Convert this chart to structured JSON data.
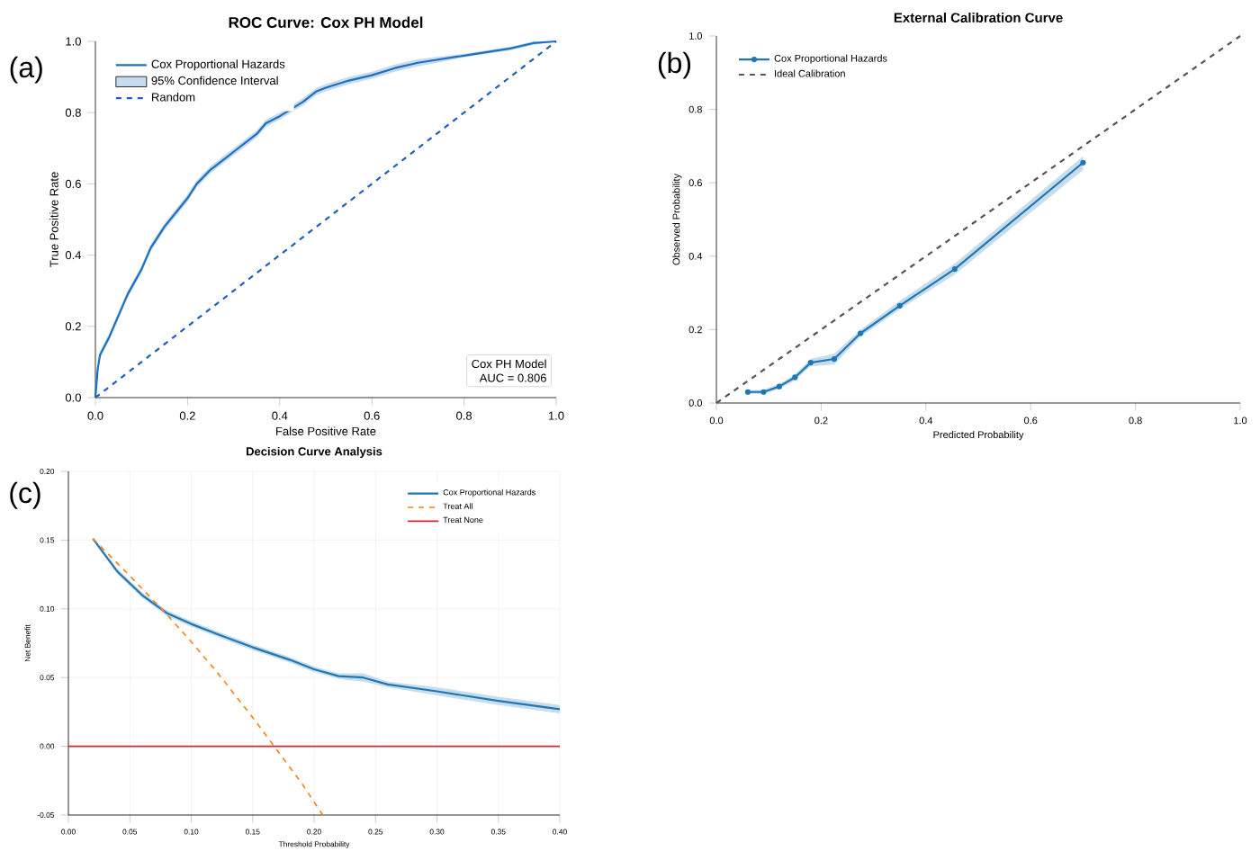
{
  "chart_data": [
    {
      "type": "line",
      "title": "ROC Curve: Cox PH Model",
      "xlabel": "False Positive Rate",
      "ylabel": "True Positive Rate",
      "xlim": [
        0,
        1
      ],
      "ylim": [
        0,
        1
      ],
      "xticks": [
        {
          "value": 0,
          "label": "0.0"
        },
        {
          "value": 0.2,
          "label": "0.2"
        },
        {
          "value": 0.4,
          "label": "0.4"
        },
        {
          "value": 0.6,
          "label": "0.6"
        },
        {
          "value": 0.8,
          "label": "0.8"
        },
        {
          "value": 1,
          "label": "1.0"
        }
      ],
      "yticks": [
        {
          "value": 0,
          "label": "0.0"
        },
        {
          "value": 0.2,
          "label": "0.2"
        },
        {
          "value": 0.4,
          "label": "0.4"
        },
        {
          "value": 0.6,
          "label": "0.6"
        },
        {
          "value": 0.8,
          "label": "0.8"
        },
        {
          "value": 1,
          "label": "1.0"
        }
      ],
      "legend": "top left",
      "annotations": [
        "(a)",
        "Cox PH Model",
        "AUC = 0.806"
      ],
      "series": [
        {
          "name": "Cox Proportional Hazards",
          "type": "line",
          "color": "#1f6fbf",
          "x": [
            0,
            0.005,
            0.01,
            0.03,
            0.05,
            0.07,
            0.1,
            0.12,
            0.15,
            0.2,
            0.22,
            0.25,
            0.3,
            0.35,
            0.37,
            0.4,
            0.45,
            0.48,
            0.5,
            0.55,
            0.6,
            0.65,
            0.7,
            0.8,
            0.9,
            0.95,
            1
          ],
          "values": [
            0,
            0.08,
            0.12,
            0.17,
            0.23,
            0.29,
            0.36,
            0.42,
            0.48,
            0.56,
            0.6,
            0.64,
            0.69,
            0.74,
            0.77,
            0.79,
            0.83,
            0.86,
            0.87,
            0.89,
            0.905,
            0.925,
            0.94,
            0.96,
            0.98,
            0.995,
            1
          ],
          "lower": [
            0,
            0.07,
            0.11,
            0.16,
            0.22,
            0.28,
            0.35,
            0.41,
            0.47,
            0.55,
            0.59,
            0.63,
            0.68,
            0.73,
            0.76,
            0.78,
            0.82,
            0.85,
            0.86,
            0.88,
            0.895,
            0.915,
            0.93,
            0.955,
            0.975,
            0.99,
            1
          ],
          "upper": [
            0,
            0.09,
            0.13,
            0.18,
            0.24,
            0.3,
            0.37,
            0.43,
            0.49,
            0.57,
            0.61,
            0.65,
            0.7,
            0.75,
            0.78,
            0.8,
            0.84,
            0.87,
            0.88,
            0.9,
            0.915,
            0.935,
            0.95,
            0.965,
            0.985,
            1,
            1
          ]
        },
        {
          "name": "95% Confidence Interval",
          "type": "area",
          "color": "#c6dbef"
        },
        {
          "name": "Random",
          "type": "line",
          "line_style": "dashed",
          "color": "#1f5fbf",
          "x": [
            0,
            1
          ],
          "values": [
            0,
            1
          ]
        }
      ]
    },
    {
      "type": "line",
      "title": "External Calibration Curve",
      "xlabel": "Predicted Probability",
      "ylabel": "Observed Probability",
      "xlim": [
        0,
        1
      ],
      "ylim": [
        0,
        1
      ],
      "xticks": [
        {
          "value": 0,
          "label": "0.0"
        },
        {
          "value": 0.2,
          "label": "0.2"
        },
        {
          "value": 0.4,
          "label": "0.4"
        },
        {
          "value": 0.6,
          "label": "0.6"
        },
        {
          "value": 0.8,
          "label": "0.8"
        },
        {
          "value": 1,
          "label": "1.0"
        }
      ],
      "yticks": [
        {
          "value": 0,
          "label": "0.0"
        },
        {
          "value": 0.2,
          "label": "0.2"
        },
        {
          "value": 0.4,
          "label": "0.4"
        },
        {
          "value": 0.6,
          "label": "0.6"
        },
        {
          "value": 0.8,
          "label": "0.8"
        },
        {
          "value": 1,
          "label": "1.0"
        }
      ],
      "legend": "top left",
      "annotations": [
        "(b)"
      ],
      "series": [
        {
          "name": "Cox Proportional Hazards",
          "type": "line",
          "marker": "circle",
          "color": "#1f77b4",
          "x": [
            0.06,
            0.09,
            0.12,
            0.15,
            0.18,
            0.225,
            0.275,
            0.35,
            0.455,
            0.7
          ],
          "values": [
            0.03,
            0.03,
            0.045,
            0.07,
            0.11,
            0.12,
            0.19,
            0.265,
            0.365,
            0.655
          ],
          "lower": [
            0.025,
            0.025,
            0.038,
            0.062,
            0.1,
            0.105,
            0.18,
            0.255,
            0.35,
            0.635
          ],
          "upper": [
            0.035,
            0.036,
            0.052,
            0.078,
            0.12,
            0.135,
            0.2,
            0.278,
            0.38,
            0.672
          ]
        },
        {
          "name": "Ideal Calibration",
          "type": "line",
          "line_style": "dashed",
          "color": "#555555",
          "x": [
            0,
            1
          ],
          "values": [
            0,
            1
          ]
        }
      ]
    },
    {
      "type": "line",
      "title": "Decision Curve Analysis",
      "xlabel": "Threshold Probability",
      "ylabel": "Net Benefit",
      "xlim": [
        0,
        0.4
      ],
      "ylim": [
        -0.05,
        0.2
      ],
      "xticks": [
        {
          "value": 0,
          "label": "0.00"
        },
        0.05,
        {
          "value": 0.1,
          "label": "0.10"
        },
        0.15,
        {
          "value": 0.2,
          "label": "0.20"
        },
        0.25,
        {
          "value": 0.3,
          "label": "0.30"
        },
        0.35,
        {
          "value": 0.4,
          "label": "0.40"
        }
      ],
      "yticks": [
        -0.05,
        {
          "value": 0,
          "label": "0.00"
        },
        0.05,
        {
          "value": 0.1,
          "label": "0.10"
        },
        0.15,
        {
          "value": 0.2,
          "label": "0.20"
        }
      ],
      "grid": true,
      "legend": "top right",
      "annotations": [
        "(c)"
      ],
      "series": [
        {
          "name": "Cox Proportional Hazards",
          "type": "line",
          "color": "#1f77b4",
          "x": [
            0.02,
            0.04,
            0.06,
            0.08,
            0.1,
            0.12,
            0.15,
            0.18,
            0.2,
            0.22,
            0.24,
            0.26,
            0.3,
            0.35,
            0.4
          ],
          "values": [
            0.151,
            0.127,
            0.11,
            0.097,
            0.089,
            0.082,
            0.072,
            0.063,
            0.056,
            0.051,
            0.05,
            0.045,
            0.04,
            0.033,
            0.027
          ],
          "lower": [
            0.15,
            0.125,
            0.108,
            0.095,
            0.087,
            0.08,
            0.07,
            0.061,
            0.054,
            0.049,
            0.047,
            0.043,
            0.037,
            0.03,
            0.024
          ],
          "upper": [
            0.152,
            0.129,
            0.112,
            0.099,
            0.091,
            0.084,
            0.074,
            0.065,
            0.058,
            0.053,
            0.053,
            0.047,
            0.043,
            0.036,
            0.03
          ]
        },
        {
          "name": "Treat All",
          "type": "line",
          "line_style": "dashed",
          "color": "#ff7f0e",
          "x": [
            0.02,
            0.05,
            0.08,
            0.1,
            0.12,
            0.15,
            0.17,
            0.19,
            0.207
          ],
          "values": [
            0.151,
            0.124,
            0.096,
            0.076,
            0.055,
            0.021,
            -0.003,
            -0.027,
            -0.05
          ]
        },
        {
          "name": "Treat None",
          "type": "line",
          "color": "#d62728",
          "x": [
            0,
            0.4
          ],
          "values": [
            0,
            0
          ]
        }
      ]
    }
  ]
}
